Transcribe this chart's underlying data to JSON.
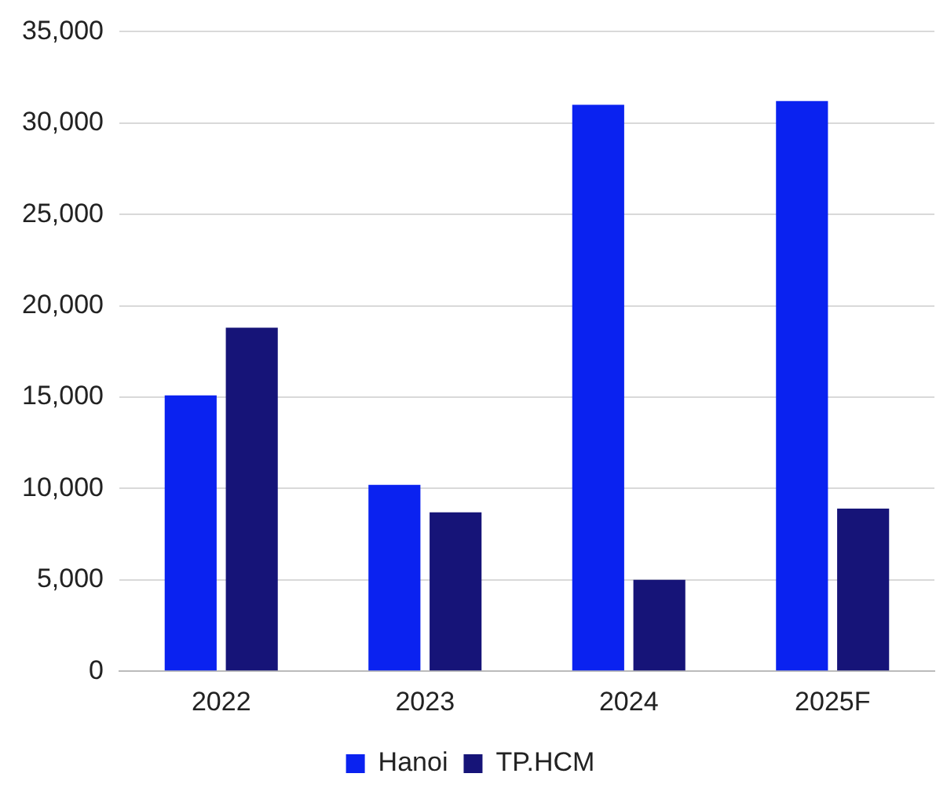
{
  "chart_data": {
    "type": "bar",
    "categories": [
      "2022",
      "2023",
      "2024",
      "2025F"
    ],
    "series": [
      {
        "name": "Hanoi",
        "color": "#0a22f0",
        "values": [
          15100,
          10200,
          31000,
          31200
        ]
      },
      {
        "name": "TP.HCM",
        "color": "#161478",
        "values": [
          18800,
          8700,
          5000,
          8900
        ]
      }
    ],
    "ylim": [
      0,
      35000
    ],
    "yticks": [
      {
        "value": 0,
        "label": "0"
      },
      {
        "value": 5000,
        "label": "5,000"
      },
      {
        "value": 10000,
        "label": "10,000"
      },
      {
        "value": 15000,
        "label": "15,000"
      },
      {
        "value": 20000,
        "label": "20,000"
      },
      {
        "value": 25000,
        "label": "25,000"
      },
      {
        "value": 30000,
        "label": "30,000"
      },
      {
        "value": 35000,
        "label": "35,000"
      }
    ],
    "grid": "y",
    "legend": "bottom"
  }
}
